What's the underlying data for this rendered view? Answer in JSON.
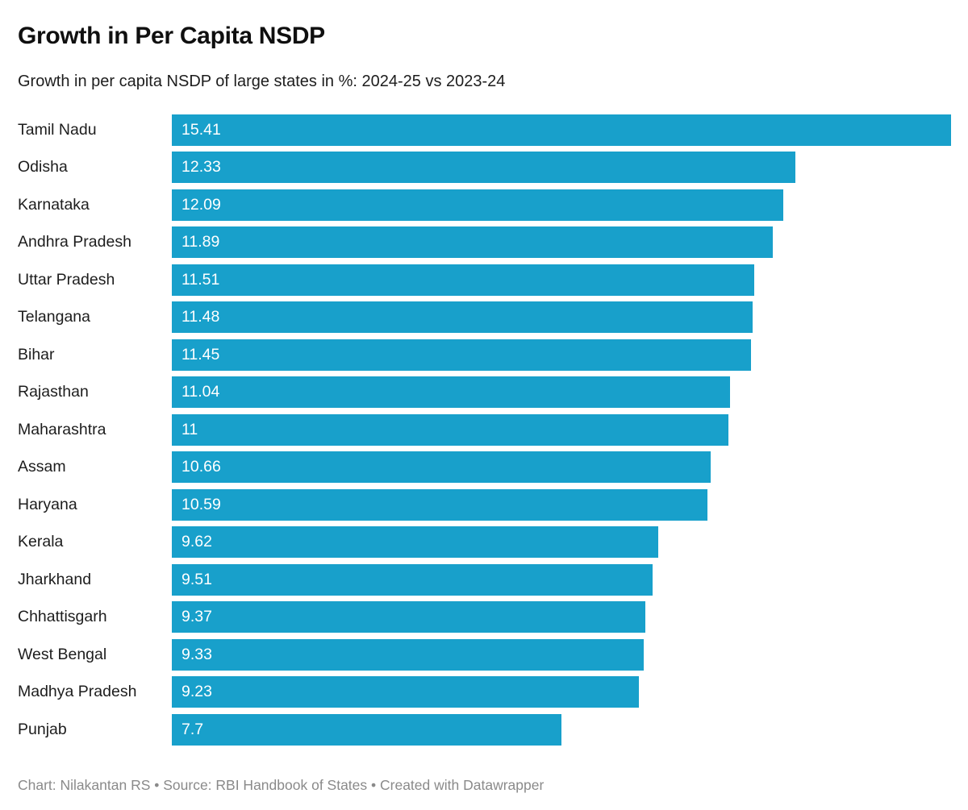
{
  "chart": {
    "title": "Growth in Per Capita NSDP",
    "subtitle": "Growth in per capita NSDP of large states in %: 2024-25 vs 2023-24",
    "footer": "Chart: Nilakantan RS • Source: RBI Handbook of States • Created with Datawrapper",
    "accent_color": "#18a0cb"
  },
  "chart_data": {
    "type": "bar",
    "orientation": "horizontal",
    "title": "Growth in Per Capita NSDP",
    "subtitle": "Growth in per capita NSDP of large states in %: 2024-25 vs 2023-24",
    "categories": [
      "Tamil Nadu",
      "Odisha",
      "Karnataka",
      "Andhra Pradesh",
      "Uttar Pradesh",
      "Telangana",
      "Bihar",
      "Rajasthan",
      "Maharashtra",
      "Assam",
      "Haryana",
      "Kerala",
      "Jharkhand",
      "Chhattisgarh",
      "West Bengal",
      "Madhya Pradesh",
      "Punjab"
    ],
    "values": [
      15.41,
      12.33,
      12.09,
      11.89,
      11.51,
      11.48,
      11.45,
      11.04,
      11,
      10.66,
      10.59,
      9.62,
      9.51,
      9.37,
      9.33,
      9.23,
      7.7
    ],
    "xlabel": "",
    "ylabel": "",
    "xlim": [
      0,
      15.41
    ],
    "bar_color": "#18a0cb",
    "value_labels": "inside-start, white",
    "grid": false,
    "legend": false
  }
}
